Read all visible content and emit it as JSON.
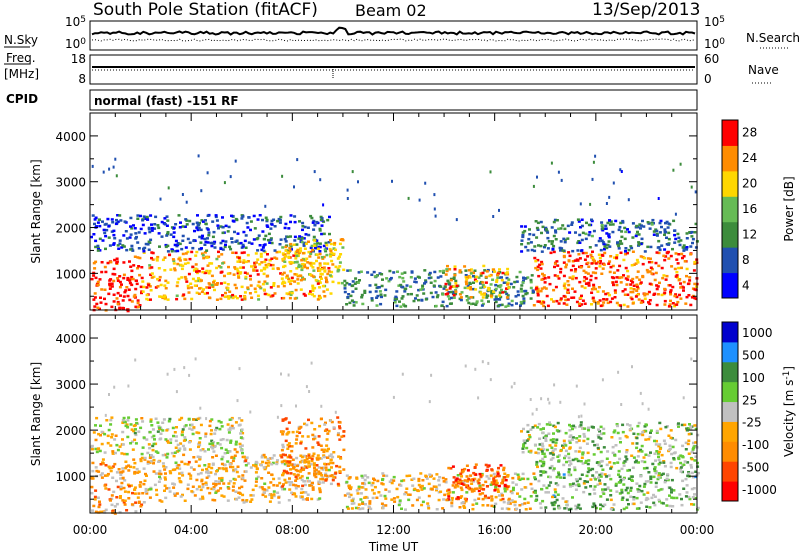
{
  "header": {
    "station": "South Pole Station (fitACF)",
    "beam": "Beam 02",
    "date": "13/Sep/2013"
  },
  "panels": {
    "nsky": {
      "label": "N.Sky",
      "ticks": [
        "10^5",
        "10^0"
      ]
    },
    "nsearch": {
      "label": "N.Search",
      "ticks": [
        "10^5",
        "10^0"
      ]
    },
    "freq": {
      "label_top": "Freq.",
      "label_bottom": "[MHz]",
      "ticks": [
        "18",
        "8"
      ]
    },
    "nave": {
      "label": "Nave",
      "ticks": [
        "60",
        "0"
      ]
    },
    "cpid": {
      "label": "CPID",
      "value": "normal (fast) -151 RF"
    }
  },
  "chart_data": [
    {
      "type": "heatmap",
      "name": "power",
      "ylabel": "Slant Range [km]",
      "ylim": [
        200,
        4500
      ],
      "yticks": [
        1000,
        2000,
        3000,
        4000
      ],
      "xlim_hours": [
        0,
        24
      ],
      "colorbar": {
        "label": "Power [dB]",
        "ticks": [
          "28",
          "24",
          "20",
          "16",
          "12",
          "8",
          "4"
        ],
        "range": [
          0,
          30
        ]
      },
      "palette": [
        "#0000ff",
        "#2050b0",
        "#3c8c3c",
        "#66bb55",
        "#ffd700",
        "#ff8c00",
        "#ff0000"
      ],
      "scatter_bands": [
        {
          "x": [
            0.0,
            2.0
          ],
          "y": [
            200,
            1400
          ],
          "level": 28
        },
        {
          "x": [
            2.0,
            9.5
          ],
          "y": [
            450,
            1500
          ],
          "level": 22
        },
        {
          "x": [
            0.0,
            9.5
          ],
          "y": [
            1500,
            2300
          ],
          "level": 6
        },
        {
          "x": [
            7.5,
            10.0
          ],
          "y": [
            800,
            1800
          ],
          "level": 20
        },
        {
          "x": [
            10.0,
            17.5
          ],
          "y": [
            300,
            1100
          ],
          "level": 10
        },
        {
          "x": [
            14.0,
            16.5
          ],
          "y": [
            500,
            1200
          ],
          "level": 22
        },
        {
          "x": [
            17.5,
            24.0
          ],
          "y": [
            300,
            1500
          ],
          "level": 26
        },
        {
          "x": [
            17.0,
            24.0
          ],
          "y": [
            1500,
            2200
          ],
          "level": 8
        }
      ]
    },
    {
      "type": "heatmap",
      "name": "velocity",
      "ylabel": "Slant Range [km]",
      "ylim": [
        200,
        4500
      ],
      "yticks": [
        1000,
        2000,
        3000,
        4000
      ],
      "xlabel": "Time UT",
      "xticks": [
        "00:00",
        "04:00",
        "08:00",
        "12:00",
        "16:00",
        "20:00",
        "00:00"
      ],
      "xlim_hours": [
        0,
        24
      ],
      "colorbar": {
        "label": "Velocity [m s^-1]",
        "ticks": [
          "1000",
          "500",
          "100",
          "25",
          "-25",
          "-100",
          "-500",
          "-1000"
        ],
        "range": [
          -1000,
          1000
        ]
      },
      "palette": [
        "#ff0000",
        "#ff4500",
        "#ff8c00",
        "#ffa500",
        "#c0c0c0",
        "#66cc33",
        "#3c8c3c",
        "#1e90ff",
        "#0000cd"
      ],
      "scatter_bands": [
        {
          "x": [
            0.0,
            2.0
          ],
          "y": [
            200,
            1400
          ],
          "level": -300
        },
        {
          "x": [
            2.0,
            9.5
          ],
          "y": [
            450,
            1500
          ],
          "level": -200
        },
        {
          "x": [
            0.0,
            6.0
          ],
          "y": [
            1500,
            2300
          ],
          "level": 0
        },
        {
          "x": [
            7.5,
            10.0
          ],
          "y": [
            800,
            2300
          ],
          "level": -400
        },
        {
          "x": [
            10.0,
            17.5
          ],
          "y": [
            300,
            1100
          ],
          "level": -150
        },
        {
          "x": [
            14.0,
            16.5
          ],
          "y": [
            500,
            1300
          ],
          "level": -600
        },
        {
          "x": [
            17.5,
            24.0
          ],
          "y": [
            300,
            1500
          ],
          "level": 200
        },
        {
          "x": [
            17.0,
            24.0
          ],
          "y": [
            1500,
            2200
          ],
          "level": 120
        }
      ]
    }
  ]
}
